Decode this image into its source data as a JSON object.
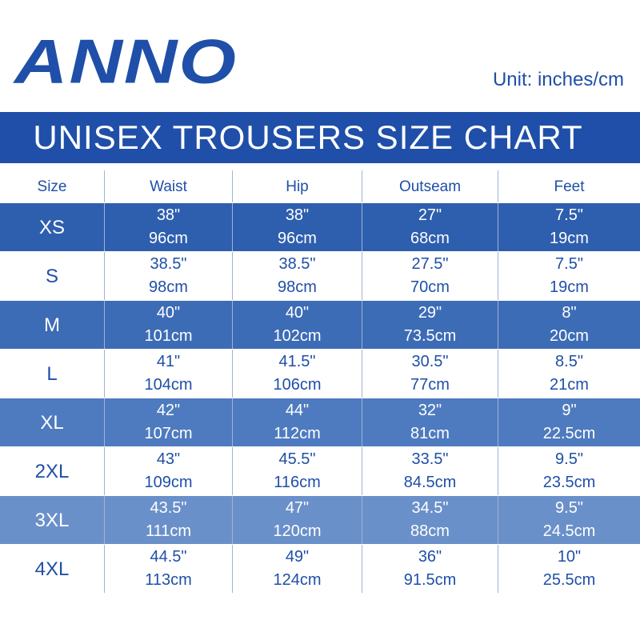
{
  "brand": "ANNO",
  "unit": "Unit: inches/cm",
  "title": "UNISEX TROUSERS SIZE CHART",
  "table": {
    "headers": [
      "Size",
      "Waist",
      "Hip",
      "Outseam",
      "Feet"
    ],
    "rows": [
      {
        "size": "XS",
        "cells": [
          [
            "38\"",
            "96cm"
          ],
          [
            "38\"",
            "96cm"
          ],
          [
            "27\"",
            "68cm"
          ],
          [
            "7.5\"",
            "19cm"
          ]
        ]
      },
      {
        "size": "S",
        "cells": [
          [
            "38.5\"",
            "98cm"
          ],
          [
            "38.5\"",
            "98cm"
          ],
          [
            "27.5\"",
            "70cm"
          ],
          [
            "7.5\"",
            "19cm"
          ]
        ]
      },
      {
        "size": "M",
        "cells": [
          [
            "40\"",
            "101cm"
          ],
          [
            "40\"",
            "102cm"
          ],
          [
            "29\"",
            "73.5cm"
          ],
          [
            "8\"",
            "20cm"
          ]
        ]
      },
      {
        "size": "L",
        "cells": [
          [
            "41\"",
            "104cm"
          ],
          [
            "41.5\"",
            "106cm"
          ],
          [
            "30.5\"",
            "77cm"
          ],
          [
            "8.5\"",
            "21cm"
          ]
        ]
      },
      {
        "size": "XL",
        "cells": [
          [
            "42\"",
            "107cm"
          ],
          [
            "44\"",
            "112cm"
          ],
          [
            "32\"",
            "81cm"
          ],
          [
            "9\"",
            "22.5cm"
          ]
        ]
      },
      {
        "size": "2XL",
        "cells": [
          [
            "43\"",
            "109cm"
          ],
          [
            "45.5\"",
            "116cm"
          ],
          [
            "33.5\"",
            "84.5cm"
          ],
          [
            "9.5\"",
            "23.5cm"
          ]
        ]
      },
      {
        "size": "3XL",
        "cells": [
          [
            "43.5\"",
            "111cm"
          ],
          [
            "47\"",
            "120cm"
          ],
          [
            "34.5\"",
            "88cm"
          ],
          [
            "9.5\"",
            "24.5cm"
          ]
        ]
      },
      {
        "size": "4XL",
        "cells": [
          [
            "44.5\"",
            "113cm"
          ],
          [
            "49\"",
            "124cm"
          ],
          [
            "36\"",
            "91.5cm"
          ],
          [
            "10\"",
            "25.5cm"
          ]
        ]
      }
    ]
  }
}
